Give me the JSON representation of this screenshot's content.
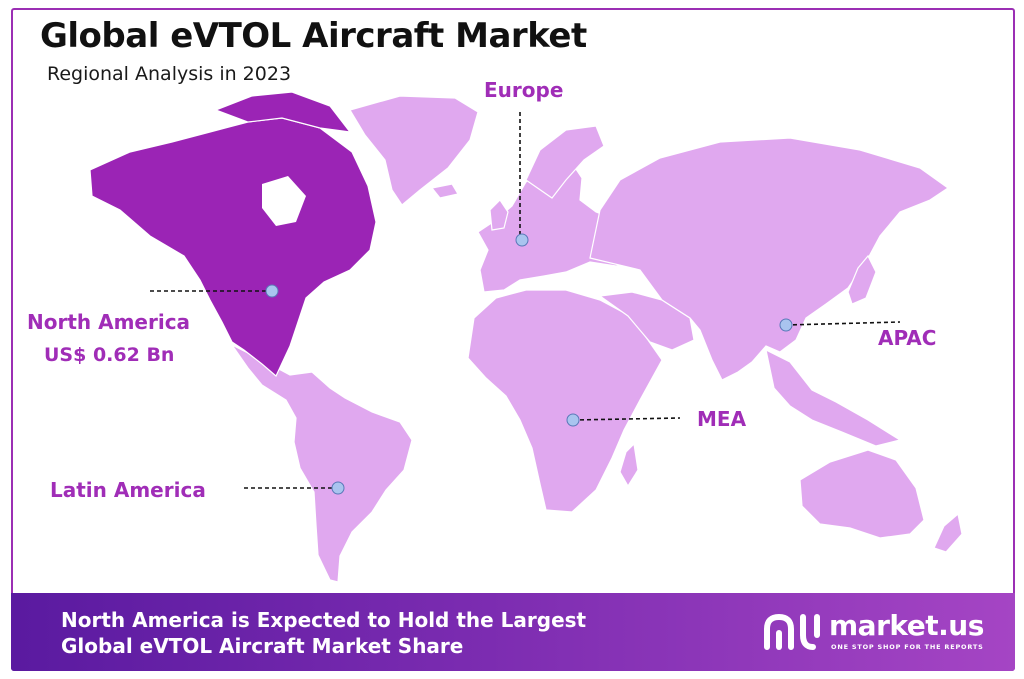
{
  "title": "Global eVTOL Aircraft Market",
  "subtitle": "Regional Analysis in 2023",
  "regions": {
    "north_america": {
      "name": "North America",
      "value": "US$ 0.62 Bn",
      "highlight": true
    },
    "europe": {
      "name": "Europe"
    },
    "apac": {
      "name": "APAC"
    },
    "mea": {
      "name": "MEA"
    },
    "latin_america": {
      "name": "Latin America"
    }
  },
  "footer": {
    "line1": "North America is Expected to Hold the Largest",
    "line2": "Global eVTOL Aircraft Market Share"
  },
  "brand": {
    "name": "market.us",
    "tagline": "ONE STOP SHOP FOR THE REPORTS",
    "logo_icon": "market-us-logo-icon"
  },
  "colors": {
    "highlight_region": "#9b24b5",
    "other_regions": "#e0a8ef",
    "label": "#a02db7",
    "marker": "#a9c4ef",
    "footer_start": "#5a1aa0",
    "footer_end": "#a545c4"
  }
}
